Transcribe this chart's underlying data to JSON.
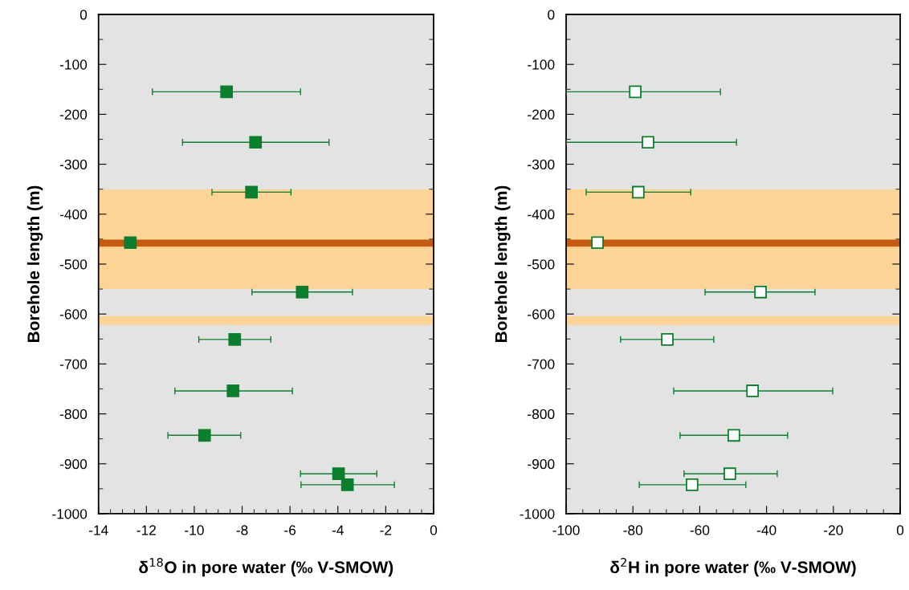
{
  "chart_data": [
    {
      "type": "scatter",
      "xlabel": "δ$^{18}$O in pore water (‰ V-SMOW)",
      "ylabel": "Borehole length (m)",
      "xlim": [
        -14,
        0
      ],
      "xticks": [
        -14,
        -12,
        -10,
        -8,
        -6,
        -4,
        -2,
        0
      ],
      "ylim": [
        -1000,
        0
      ],
      "yticks": [
        -1000,
        -900,
        -800,
        -700,
        -600,
        -500,
        -400,
        -300,
        -200,
        -100,
        0
      ],
      "grid": false,
      "legend": false,
      "marker": "square",
      "bands": [
        {
          "axis": "y",
          "from": -350,
          "to": -550,
          "color": "#fcd596"
        },
        {
          "axis": "y",
          "from": -604,
          "to": -622,
          "color": "#fcd596"
        },
        {
          "axis": "y",
          "from": -451,
          "to": -465,
          "color": "#c55a11"
        }
      ],
      "series": [
        {
          "color": "#0a7f2e",
          "x": [
            -8.65,
            -7.44,
            -7.61,
            -12.67,
            -5.49,
            -8.31,
            -8.38,
            -9.57,
            -3.97,
            -3.6
          ],
          "values": [
            -155,
            -256,
            -356,
            -457,
            -556,
            -651,
            -754,
            -843,
            -920,
            -942
          ],
          "xerrors": [
            [
              -11.75,
              -5.56
            ],
            [
              -10.49,
              -4.37
            ],
            [
              -9.26,
              -5.96
            ],
            null,
            [
              -7.59,
              -3.39
            ],
            [
              -9.81,
              -6.8
            ],
            [
              -10.81,
              -5.9
            ],
            [
              -11.1,
              -8.06
            ],
            [
              -5.56,
              -2.37
            ],
            [
              -5.54,
              -1.64
            ]
          ]
        }
      ]
    },
    {
      "type": "scatter",
      "xlabel": "δ$^{2}$H in pore water (‰ V-SMOW)",
      "ylabel": "Borehole length (m)",
      "xlim": [
        -100,
        0
      ],
      "xticks": [
        -100,
        -80,
        -60,
        -40,
        -20,
        0
      ],
      "ylim": [
        -1000,
        0
      ],
      "yticks": [
        -1000,
        -900,
        -800,
        -700,
        -600,
        -500,
        -400,
        -300,
        -200,
        -100,
        0
      ],
      "grid": false,
      "legend": false,
      "marker": "square",
      "bands": [
        {
          "axis": "y",
          "from": -350,
          "to": -550,
          "color": "#fcd596"
        },
        {
          "axis": "y",
          "from": -604,
          "to": -622,
          "color": "#fcd596"
        },
        {
          "axis": "y",
          "from": -451,
          "to": -465,
          "color": "#c55a11"
        }
      ],
      "series": [
        {
          "color": "#0a7f2e",
          "x": [
            -79.3,
            -75.5,
            -78.4,
            -90.6,
            -41.8,
            -69.7,
            -44.2,
            -49.8,
            -51.0,
            -62.3
          ],
          "values": [
            -155,
            -256,
            -356,
            -457,
            -556,
            -651,
            -754,
            -843,
            -920,
            -942
          ],
          "xerrors": [
            [
              -100,
              -53.8
            ],
            [
              -100,
              -49.0
            ],
            [
              -94.0,
              -62.7
            ],
            null,
            [
              -58.4,
              -25.5
            ],
            [
              -83.7,
              -55.8
            ],
            [
              -67.8,
              -20.2
            ],
            [
              -65.9,
              -33.7
            ],
            [
              -64.7,
              -36.8
            ],
            [
              -78.1,
              -46.2
            ]
          ]
        }
      ]
    }
  ]
}
